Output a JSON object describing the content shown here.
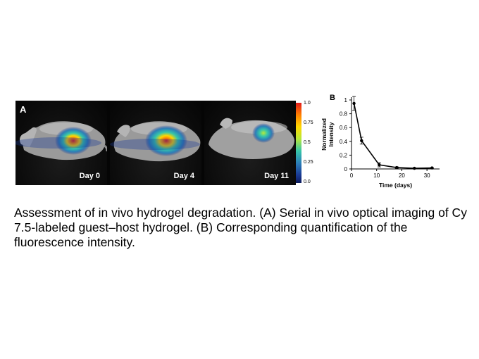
{
  "panel_a": {
    "letter": "A",
    "images": [
      {
        "day_label": "Day 0",
        "signal": "strong"
      },
      {
        "day_label": "Day 4",
        "signal": "strong"
      },
      {
        "day_label": "Day 11",
        "signal": "weak"
      }
    ],
    "colorbar": {
      "ticks": [
        "1.0",
        "0.75",
        "0.5",
        "0.25",
        "0.0"
      ],
      "colors": [
        "#e31a1c",
        "#ff7f00",
        "#ffd700",
        "#b6e93a",
        "#36c6a9",
        "#2c7fb8",
        "#1a3a94",
        "#0c1a5c"
      ]
    }
  },
  "panel_b": {
    "letter": "B",
    "chart_data": {
      "type": "line",
      "xlabel": "Time (days)",
      "ylabel": [
        "Normalized",
        "Intensity"
      ],
      "xlim": [
        0,
        35
      ],
      "ylim": [
        0,
        1
      ],
      "xticks": [
        0,
        10,
        20,
        30
      ],
      "yticks": [
        0,
        0.2,
        0.4,
        0.6,
        0.8,
        1
      ],
      "series": [
        {
          "x": [
            1,
            4,
            11,
            18,
            25,
            32
          ],
          "y": [
            0.95,
            0.41,
            0.06,
            0.02,
            0.01,
            0.015
          ],
          "error": [
            0.1,
            0.05,
            0.03,
            0.01,
            0.005,
            0.005
          ],
          "color": "#000000"
        }
      ]
    }
  },
  "caption": "Assessment of in vivo hydrogel degradation. (A) Serial in vivo optical imaging of Cy 7.5-labeled guest–host hydrogel. (B) Corresponding quantification of the fluorescence intensity."
}
